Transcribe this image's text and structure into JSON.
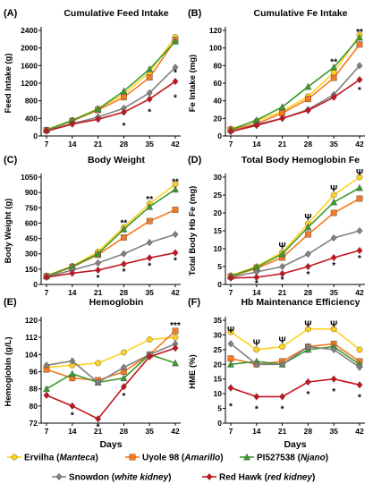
{
  "series_styles": [
    {
      "key": "ervilha",
      "color": "#ffd21f",
      "marker": "circle",
      "legend_plain": "Ervilha (",
      "legend_italic": "Manteca",
      "legend_close": ")"
    },
    {
      "key": "uyole",
      "color": "#f47a20",
      "marker": "square",
      "legend_plain": "Uyole 98 (",
      "legend_italic": "Amarillo",
      "legend_close": ")"
    },
    {
      "key": "pi",
      "color": "#3e9a2f",
      "marker": "triangle",
      "legend_plain": "PI527538 (",
      "legend_italic": "Njano",
      "legend_close": ")"
    },
    {
      "key": "snowdon",
      "color": "#808080",
      "marker": "diamond",
      "legend_plain": "Snowdon (",
      "legend_italic": "white kidney",
      "legend_close": ")"
    },
    {
      "key": "redhawk",
      "color": "#c4141f",
      "marker": "diamond",
      "legend_plain": "Red Hawk (",
      "legend_italic": "red kidney",
      "legend_close": ")"
    }
  ],
  "x_axis_label": "Days",
  "chart_data": [
    {
      "panel": "(A)",
      "type": "line",
      "title": "Cumulative Feed Intake",
      "ylabel": "Feed Intake (g)",
      "x": [
        7,
        14,
        21,
        28,
        35,
        42
      ],
      "ylim": [
        0,
        2400
      ],
      "yticks": [
        0,
        400,
        800,
        1200,
        1600,
        2000,
        2400
      ],
      "series": [
        {
          "name": "Ervilha (Manteca)",
          "values": [
            140,
            360,
            620,
            950,
            1450,
            2250
          ]
        },
        {
          "name": "Uyole 98 (Amarillo)",
          "values": [
            130,
            340,
            590,
            880,
            1330,
            2180
          ]
        },
        {
          "name": "PI527538 (Njano)",
          "values": [
            135,
            350,
            610,
            1020,
            1520,
            2150
          ]
        },
        {
          "name": "Snowdon (white kidney)",
          "values": [
            120,
            280,
            430,
            630,
            980,
            1560
          ]
        },
        {
          "name": "Red Hawk (red kidney)",
          "values": [
            110,
            270,
            380,
            540,
            840,
            1240
          ]
        }
      ],
      "annotations": [
        {
          "x": 28,
          "y": 240,
          "text": "*"
        },
        {
          "x": 35,
          "y": 560,
          "text": "*"
        },
        {
          "x": 42,
          "y": 1450,
          "text": "*"
        },
        {
          "x": 42,
          "y": 880,
          "text": "*"
        }
      ]
    },
    {
      "panel": "(B)",
      "type": "line",
      "title": "Cumulative Fe Intake",
      "ylabel": "Fe Intake (mg)",
      "x": [
        7,
        14,
        21,
        28,
        35,
        42
      ],
      "ylim": [
        0,
        120
      ],
      "yticks": [
        0,
        20,
        40,
        60,
        80,
        100,
        120
      ],
      "series": [
        {
          "name": "Ervilha (Manteca)",
          "values": [
            8,
            17,
            28,
            45,
            72,
            115
          ]
        },
        {
          "name": "Uyole 98 (Amarillo)",
          "values": [
            7,
            14,
            26,
            42,
            66,
            104
          ]
        },
        {
          "name": "PI527538 (Njano)",
          "values": [
            7,
            18,
            33,
            56,
            78,
            112
          ]
        },
        {
          "name": "Snowdon (white kidney)",
          "values": [
            5,
            13,
            20,
            30,
            47,
            80
          ]
        },
        {
          "name": "Red Hawk (red kidney)",
          "values": [
            5,
            12,
            20,
            29,
            44,
            64
          ]
        }
      ],
      "annotations": [
        {
          "x": 35,
          "y": 85,
          "text": "**"
        },
        {
          "x": 42,
          "y": 119,
          "text": "**"
        },
        {
          "x": 42,
          "y": 53,
          "text": "*"
        }
      ]
    },
    {
      "panel": "(C)",
      "type": "line",
      "title": "Body Weight",
      "ylabel": "Body Weight (g)",
      "x": [
        7,
        14,
        21,
        28,
        35,
        42
      ],
      "ylim": [
        0,
        1050
      ],
      "yticks": [
        0,
        150,
        300,
        450,
        600,
        750,
        900,
        1050
      ],
      "series": [
        {
          "name": "Ervilha (Manteca)",
          "values": [
            85,
            180,
            320,
            560,
            790,
            980
          ]
        },
        {
          "name": "Uyole 98 (Amarillo)",
          "values": [
            80,
            170,
            290,
            460,
            620,
            730
          ]
        },
        {
          "name": "PI527538 (Njano)",
          "values": [
            82,
            175,
            300,
            540,
            760,
            930
          ]
        },
        {
          "name": "Snowdon (white kidney)",
          "values": [
            75,
            140,
            210,
            300,
            410,
            490
          ]
        },
        {
          "name": "Red Hawk (red kidney)",
          "values": [
            70,
            110,
            140,
            200,
            260,
            310
          ]
        }
      ],
      "annotations": [
        {
          "x": 28,
          "y": 610,
          "text": "**"
        },
        {
          "x": 35,
          "y": 840,
          "text": "**"
        },
        {
          "x": 42,
          "y": 1010,
          "text": "**"
        },
        {
          "x": 21,
          "y": 70,
          "text": "*"
        },
        {
          "x": 28,
          "y": 130,
          "text": "*"
        },
        {
          "x": 35,
          "y": 190,
          "text": "*"
        },
        {
          "x": 42,
          "y": 240,
          "text": "*"
        }
      ]
    },
    {
      "panel": "(D)",
      "type": "line",
      "title": "Total Body Hemoglobin Fe",
      "ylabel": "Total Body Hb Fe (mg)",
      "x": [
        7,
        14,
        21,
        28,
        35,
        42
      ],
      "ylim": [
        0,
        30
      ],
      "yticks": [
        0,
        5,
        10,
        15,
        20,
        25,
        30
      ],
      "series": [
        {
          "name": "Ervilha (Manteca)",
          "values": [
            2.5,
            5,
            9,
            17,
            25,
            30
          ]
        },
        {
          "name": "Uyole 98 (Amarillo)",
          "values": [
            2.2,
            4.5,
            7.5,
            14,
            20,
            24
          ]
        },
        {
          "name": "PI527538 (Njano)",
          "values": [
            2.3,
            4.8,
            8.5,
            16,
            23,
            27
          ]
        },
        {
          "name": "Snowdon (white kidney)",
          "values": [
            2.0,
            3.5,
            5,
            8.5,
            13,
            15
          ]
        },
        {
          "name": "Red Hawk (red kidney)",
          "values": [
            1.8,
            2,
            3,
            5,
            7.5,
            9.5
          ]
        }
      ],
      "annotations": [
        {
          "x": 21,
          "y": 11,
          "text": "Ψ"
        },
        {
          "x": 28,
          "y": 19,
          "text": "Ψ"
        },
        {
          "x": 35,
          "y": 27,
          "text": "Ψ"
        },
        {
          "x": 42,
          "y": 31.5,
          "text": "Ψ"
        },
        {
          "x": 14,
          "y": 0.5,
          "text": "*"
        },
        {
          "x": 21,
          "y": 1.5,
          "text": "*"
        },
        {
          "x": 28,
          "y": 3,
          "text": "*"
        },
        {
          "x": 35,
          "y": 5.5,
          "text": "*"
        },
        {
          "x": 42,
          "y": 7.5,
          "text": "*"
        }
      ]
    },
    {
      "panel": "(E)",
      "type": "line",
      "title": "Hemoglobin",
      "ylabel": "Hemoglobin (g/L)",
      "x": [
        7,
        14,
        21,
        28,
        35,
        42
      ],
      "ylim": [
        72,
        120
      ],
      "yticks": [
        72,
        80,
        88,
        96,
        104,
        112,
        120
      ],
      "series": [
        {
          "name": "Ervilha (Manteca)",
          "values": [
            98,
            99,
            100,
            105,
            111,
            112
          ]
        },
        {
          "name": "Uyole 98 (Amarillo)",
          "values": [
            97,
            93,
            92,
            96,
            104,
            115
          ]
        },
        {
          "name": "PI527538 (Njano)",
          "values": [
            88,
            95,
            91,
            93,
            104,
            100
          ]
        },
        {
          "name": "Snowdon (white kidney)",
          "values": [
            99,
            101,
            91,
            98,
            104,
            109
          ]
        },
        {
          "name": "Red Hawk (red kidney)",
          "values": [
            85,
            80,
            74,
            89,
            103,
            107
          ]
        }
      ],
      "annotations": [
        {
          "x": 42,
          "y": 118,
          "text": "***"
        },
        {
          "x": 14,
          "y": 76,
          "text": "*"
        },
        {
          "x": 21,
          "y": 70.5,
          "text": "*"
        },
        {
          "x": 28,
          "y": 85,
          "text": "*"
        }
      ]
    },
    {
      "panel": "(F)",
      "type": "line",
      "title": "Hb Maintenance Efficiency",
      "ylabel": "HME (%)",
      "x": [
        7,
        14,
        21,
        28,
        35,
        42
      ],
      "ylim": [
        0,
        35
      ],
      "yticks": [
        0,
        5,
        10,
        15,
        20,
        25,
        30,
        35
      ],
      "series": [
        {
          "name": "Ervilha (Manteca)",
          "values": [
            31,
            25,
            26,
            32,
            32,
            25
          ]
        },
        {
          "name": "Uyole 98 (Amarillo)",
          "values": [
            22,
            20,
            21,
            26,
            27,
            21
          ]
        },
        {
          "name": "PI527538 (Njano)",
          "values": [
            20,
            21,
            20,
            25,
            26,
            20
          ]
        },
        {
          "name": "Snowdon (white kidney)",
          "values": [
            27,
            20,
            20,
            26,
            25,
            19
          ]
        },
        {
          "name": "Red Hawk (red kidney)",
          "values": [
            12,
            9,
            9,
            14,
            15,
            13
          ]
        }
      ],
      "annotations": [
        {
          "x": 7,
          "y": 32,
          "text": "Ψ"
        },
        {
          "x": 14,
          "y": 27.5,
          "text": "Ψ"
        },
        {
          "x": 21,
          "y": 28.5,
          "text": "Ψ"
        },
        {
          "x": 28,
          "y": 34,
          "text": "Ψ"
        },
        {
          "x": 35,
          "y": 34,
          "text": "Ψ"
        },
        {
          "x": 7,
          "y": 6,
          "text": "*"
        },
        {
          "x": 14,
          "y": 5,
          "text": "*"
        },
        {
          "x": 21,
          "y": 5,
          "text": "*"
        },
        {
          "x": 28,
          "y": 10,
          "text": "*"
        },
        {
          "x": 35,
          "y": 11,
          "text": "*"
        },
        {
          "x": 42,
          "y": 9,
          "text": "*"
        }
      ]
    }
  ]
}
